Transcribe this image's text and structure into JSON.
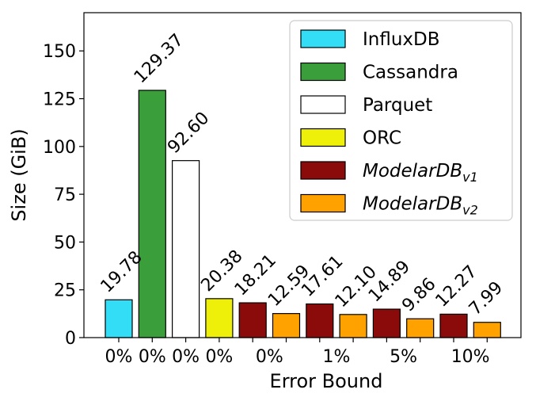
{
  "chart_data": {
    "type": "bar",
    "title": "",
    "xlabel": "Error Bound",
    "ylabel": "Size (GiB)",
    "ylim": [
      0,
      170
    ],
    "yticks": [
      0,
      25,
      50,
      75,
      100,
      125,
      150
    ],
    "grid": false,
    "legend_position": "top-right",
    "bars": [
      {
        "label": "0%",
        "series": "InfluxDB",
        "value": 19.78,
        "value_label": "19.78"
      },
      {
        "label": "0%",
        "series": "Cassandra",
        "value": 129.37,
        "value_label": "129.37"
      },
      {
        "label": "0%",
        "series": "Parquet",
        "value": 92.6,
        "value_label": "92.60"
      },
      {
        "label": "0%",
        "series": "ORC",
        "value": 20.38,
        "value_label": "20.38"
      },
      {
        "label": "0%",
        "series": "ModelarDB_v1",
        "value": 18.21,
        "value_label": "18.21"
      },
      {
        "label": "0%",
        "series": "ModelarDB_v2",
        "value": 12.59,
        "value_label": "12.59"
      },
      {
        "label": "1%",
        "series": "ModelarDB_v1",
        "value": 17.61,
        "value_label": "17.61"
      },
      {
        "label": "1%",
        "series": "ModelarDB_v2",
        "value": 12.1,
        "value_label": "12.10"
      },
      {
        "label": "5%",
        "series": "ModelarDB_v1",
        "value": 14.89,
        "value_label": "14.89"
      },
      {
        "label": "5%",
        "series": "ModelarDB_v2",
        "value": 9.86,
        "value_label": "9.86"
      },
      {
        "label": "10%",
        "series": "ModelarDB_v1",
        "value": 12.27,
        "value_label": "12.27"
      },
      {
        "label": "10%",
        "series": "ModelarDB_v2",
        "value": 7.99,
        "value_label": "7.99"
      }
    ],
    "legend": [
      {
        "series": "InfluxDB",
        "name": "InfluxDB",
        "sub": "",
        "color": "#33ddf5"
      },
      {
        "series": "Cassandra",
        "name": "Cassandra",
        "sub": "",
        "color": "#3a9e3a"
      },
      {
        "series": "Parquet",
        "name": "Parquet",
        "sub": "",
        "color": "#ffffff"
      },
      {
        "series": "ORC",
        "name": "ORC",
        "sub": "",
        "color": "#eef00a"
      },
      {
        "series": "ModelarDB_v1",
        "name": "ModelarDB",
        "sub": "v1",
        "color": "#8b0a0a"
      },
      {
        "series": "ModelarDB_v2",
        "name": "ModelarDB",
        "sub": "v2",
        "color": "#ffa200"
      }
    ]
  }
}
